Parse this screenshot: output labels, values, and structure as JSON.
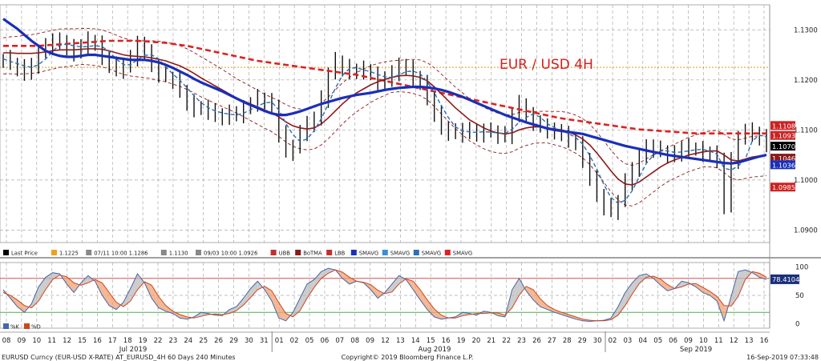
{
  "chart_data": [
    {
      "type": "line",
      "title": "EUR / USD 4H",
      "ylim": [
        1.0875,
        1.135
      ],
      "yticks": [
        "1.1300",
        "1.1200",
        "1.1100",
        "1.1000",
        "1.0900"
      ],
      "reference_line": 1.1225,
      "grid": true,
      "price_labels": [
        {
          "text": "1.1108",
          "value": 1.1108,
          "color": "#cc2222"
        },
        {
          "text": "1.1093",
          "value": 1.1093,
          "color": "#cc2222"
        },
        {
          "text": "1.1070",
          "value": 1.107,
          "color": "#000000"
        },
        {
          "text": "1.1046",
          "value": 1.1046,
          "color": "#8b1a1a"
        },
        {
          "text": "1.1036",
          "value": 1.1036,
          "color": "#1a2fb8"
        },
        {
          "text": "1.0985",
          "value": 1.0985,
          "color": "#cc2222"
        }
      ],
      "legend": [
        {
          "label": "Last Price",
          "color": "#000000"
        },
        {
          "label": "1.1225",
          "color": "#f0a020"
        },
        {
          "label": "07/11 10:00 1.1286",
          "color": "#888888"
        },
        {
          "label": "1.1130",
          "color": "#888888"
        },
        {
          "label": "09/03 10:00 1.0926",
          "color": "#888888"
        },
        {
          "label": "UBB",
          "color": "#c03030"
        },
        {
          "label": "BoTMA",
          "color": "#8b1a1a"
        },
        {
          "label": "LBB",
          "color": "#c03030"
        },
        {
          "label": "SMAVG",
          "color": "#1a2fb8"
        },
        {
          "label": "SMAVG",
          "color": "#3a8fd8"
        },
        {
          "label": "SMAVG",
          "color": "#2a6fb8"
        },
        {
          "label": "SMAVG",
          "color": "#dd2222"
        }
      ],
      "close": [
        1.1242,
        1.1232,
        1.1224,
        1.1214,
        1.123,
        1.1254,
        1.1268,
        1.1278,
        1.1276,
        1.1264,
        1.1254,
        1.127,
        1.1279,
        1.1271,
        1.1246,
        1.123,
        1.122,
        1.1226,
        1.1244,
        1.1272,
        1.1254,
        1.123,
        1.1212,
        1.1206,
        1.12,
        1.1178,
        1.1154,
        1.1142,
        1.1144,
        1.1138,
        1.1128,
        1.1126,
        1.1134,
        1.1131,
        1.1142,
        1.1154,
        1.1164,
        1.1156,
        1.1148,
        1.1092,
        1.1056,
        1.1066,
        1.1094,
        1.1112,
        1.1122,
        1.1162,
        1.1212,
        1.1238,
        1.1224,
        1.1216,
        1.1221,
        1.1218,
        1.121,
        1.1194,
        1.1202,
        1.1214,
        1.1228,
        1.1222,
        1.1206,
        1.1192,
        1.1166,
        1.1132,
        1.1104,
        1.1096,
        1.1092,
        1.11,
        1.1096,
        1.1092,
        1.1098,
        1.1096,
        1.109,
        1.1088,
        1.1132,
        1.1152,
        1.1128,
        1.1116,
        1.1106,
        1.11,
        1.1096,
        1.1092,
        1.1082,
        1.107,
        1.1042,
        1.1002,
        1.0972,
        1.0946,
        1.0938,
        1.0958,
        1.0996,
        1.1022,
        1.1048,
        1.1066,
        1.1062,
        1.1056,
        1.105,
        1.1052,
        1.1066,
        1.1064,
        1.106,
        1.1054,
        1.1052,
        1.104,
        1.0948,
        1.104,
        1.1082,
        1.1098,
        1.1094,
        1.1084,
        1.107
      ],
      "sma_blue": [
        1.1322,
        1.1312,
        1.1302,
        1.129,
        1.1278,
        1.1268,
        1.1258,
        1.1252,
        1.1248,
        1.1246,
        1.1246,
        1.1248,
        1.125,
        1.125,
        1.1248,
        1.1246,
        1.1244,
        1.1242,
        1.124,
        1.124,
        1.124,
        1.1238,
        1.1235,
        1.123,
        1.1224,
        1.1217,
        1.121,
        1.1202,
        1.1195,
        1.1189,
        1.1183,
        1.1177,
        1.117,
        1.1163,
        1.1156,
        1.115,
        1.1144,
        1.1138,
        1.1133,
        1.113,
        1.113,
        1.1133,
        1.1137,
        1.1142,
        1.1147,
        1.1152,
        1.1156,
        1.116,
        1.1164,
        1.1167,
        1.117,
        1.1172,
        1.1174,
        1.1177,
        1.118,
        1.1182,
        1.1184,
        1.1185,
        1.1186,
        1.1186,
        1.1185,
        1.1183,
        1.118,
        1.1176,
        1.1171,
        1.1166,
        1.116,
        1.1154,
        1.1148,
        1.1142,
        1.1136,
        1.113,
        1.1125,
        1.112,
        1.1115,
        1.1111,
        1.1107,
        1.1103,
        1.11,
        1.1098,
        1.1096,
        1.1094,
        1.1092,
        1.1088,
        1.1084,
        1.108,
        1.1076,
        1.1072,
        1.1068,
        1.1065,
        1.1062,
        1.1059,
        1.1056,
        1.1053,
        1.105,
        1.1048,
        1.1046,
        1.1044,
        1.1042,
        1.104,
        1.1038,
        1.1036,
        1.1034,
        1.1033,
        1.1035,
        1.1039,
        1.1043,
        1.1047,
        1.105
      ],
      "botma": [
        1.1254,
        1.1254,
        1.1253,
        1.1253,
        1.1253,
        1.1254,
        1.1256,
        1.1258,
        1.126,
        1.126,
        1.126,
        1.1261,
        1.1262,
        1.1262,
        1.1261,
        1.1258,
        1.1254,
        1.125,
        1.1248,
        1.1247,
        1.1246,
        1.1244,
        1.1241,
        1.1238,
        1.1233,
        1.1228,
        1.1221,
        1.1213,
        1.1204,
        1.1196,
        1.1188,
        1.118,
        1.1172,
        1.1164,
        1.1158,
        1.1152,
        1.1146,
        1.114,
        1.1134,
        1.1126,
        1.1116,
        1.1108,
        1.1104,
        1.1102,
        1.1104,
        1.1112,
        1.1124,
        1.1138,
        1.1152,
        1.1164,
        1.1174,
        1.1182,
        1.119,
        1.1196,
        1.1201,
        1.1205,
        1.1208,
        1.1209,
        1.1208,
        1.1205,
        1.1198,
        1.1186,
        1.1172,
        1.1158,
        1.1144,
        1.1132,
        1.112,
        1.1112,
        1.1104,
        1.1098,
        1.1094,
        1.1092,
        1.1094,
        1.11,
        1.1104,
        1.1106,
        1.1106,
        1.1104,
        1.1102,
        1.11,
        1.1096,
        1.109,
        1.1082,
        1.107,
        1.1054,
        1.1036,
        1.1018,
        1.1002,
        1.0992,
        1.099,
        1.0996,
        1.1006,
        1.1016,
        1.1026,
        1.1034,
        1.104,
        1.1045,
        1.105,
        1.1053,
        1.1056,
        1.1058,
        1.1058,
        1.105,
        1.104,
        1.1038,
        1.1042,
        1.1046,
        1.1048,
        1.105
      ],
      "sma_long": [
        1.1268,
        1.1268,
        1.1268,
        1.1268,
        1.1268,
        1.1268,
        1.1269,
        1.127,
        1.1271,
        1.1272,
        1.1273,
        1.1274,
        1.1275,
        1.1276,
        1.1277,
        1.1278,
        1.1278,
        1.1278,
        1.1278,
        1.1278,
        1.1277,
        1.1276,
        1.1275,
        1.1274,
        1.1272,
        1.127,
        1.1268,
        1.1265,
        1.1262,
        1.1259,
        1.1256,
        1.1253,
        1.125,
        1.1247,
        1.1244,
        1.1241,
        1.1238,
        1.1236,
        1.1234,
        1.1232,
        1.123,
        1.1228,
        1.1226,
        1.1224,
        1.1222,
        1.122,
        1.1218,
        1.1216,
        1.1214,
        1.1212,
        1.121,
        1.1207,
        1.1204,
        1.1201,
        1.1198,
        1.1195,
        1.1192,
        1.1189,
        1.1186,
        1.1183,
        1.118,
        1.1177,
        1.1174,
        1.1171,
        1.1168,
        1.1165,
        1.1162,
        1.1159,
        1.1156,
        1.1153,
        1.115,
        1.1147,
        1.1144,
        1.1141,
        1.1138,
        1.1135,
        1.1132,
        1.1129,
        1.1126,
        1.1123,
        1.1121,
        1.1119,
        1.1117,
        1.1115,
        1.1113,
        1.1111,
        1.1109,
        1.1107,
        1.1105,
        1.1103,
        1.1101,
        1.11,
        1.1099,
        1.1098,
        1.1097,
        1.1096,
        1.1095,
        1.1094,
        1.1093,
        1.1093,
        1.1093,
        1.1093,
        1.1093,
        1.1093,
        1.1093,
        1.1093,
        1.1093,
        1.1093,
        1.1093
      ]
    },
    {
      "type": "line",
      "ylim": [
        -8,
        108
      ],
      "yticks": [
        "100",
        "50",
        "0"
      ],
      "levels": [
        80,
        20
      ],
      "value_label": {
        "text": "78.4104",
        "value": 78.4104
      },
      "legend": [
        {
          "label": "%K",
          "color": "#4466aa"
        },
        {
          "label": "%D",
          "color": "#cc4422"
        }
      ],
      "k": [
        60,
        45,
        30,
        20,
        35,
        65,
        82,
        90,
        88,
        70,
        55,
        72,
        85,
        75,
        50,
        32,
        25,
        38,
        62,
        88,
        72,
        45,
        28,
        22,
        18,
        10,
        8,
        12,
        20,
        18,
        15,
        14,
        25,
        30,
        45,
        62,
        75,
        60,
        40,
        10,
        5,
        20,
        45,
        70,
        78,
        92,
        98,
        95,
        80,
        70,
        75,
        72,
        60,
        45,
        55,
        70,
        85,
        78,
        60,
        42,
        25,
        12,
        8,
        10,
        12,
        20,
        18,
        15,
        22,
        20,
        14,
        12,
        60,
        80,
        58,
        42,
        30,
        25,
        20,
        16,
        12,
        8,
        5,
        4,
        5,
        6,
        10,
        30,
        55,
        72,
        85,
        88,
        80,
        68,
        58,
        62,
        75,
        72,
        65,
        55,
        50,
        40,
        5,
        48,
        92,
        95,
        90,
        82,
        78
      ],
      "d": [
        55,
        50,
        42,
        32,
        28,
        40,
        60,
        78,
        86,
        83,
        72,
        68,
        72,
        78,
        72,
        55,
        38,
        30,
        40,
        60,
        74,
        68,
        48,
        32,
        22,
        16,
        12,
        10,
        13,
        16,
        17,
        16,
        18,
        23,
        33,
        46,
        60,
        66,
        58,
        37,
        18,
        12,
        23,
        45,
        64,
        80,
        89,
        95,
        91,
        82,
        75,
        73,
        69,
        59,
        53,
        56,
        70,
        79,
        75,
        60,
        42,
        26,
        15,
        10,
        10,
        14,
        16,
        18,
        18,
        19,
        19,
        15,
        28,
        50,
        66,
        60,
        44,
        32,
        25,
        20,
        16,
        12,
        8,
        6,
        5,
        5,
        7,
        15,
        32,
        52,
        71,
        82,
        84,
        79,
        69,
        62,
        65,
        70,
        71,
        64,
        57,
        48,
        32,
        31,
        48,
        78,
        92,
        89,
        82
      ]
    }
  ],
  "x_axis": {
    "day_labels": [
      "08",
      "09",
      "10",
      "11",
      "12",
      "15",
      "16",
      "17",
      "18",
      "19",
      "22",
      "23",
      "24",
      "25",
      "26",
      "29",
      "30",
      "31",
      "01",
      "02",
      "05",
      "06",
      "07",
      "08",
      "09",
      "12",
      "13",
      "14",
      "15",
      "16",
      "19",
      "20",
      "21",
      "22",
      "23",
      "26",
      "27",
      "28",
      "29",
      "30",
      "02",
      "03",
      "04",
      "05",
      "06",
      "09",
      "10",
      "11",
      "12",
      "13",
      "16"
    ],
    "month_labels": [
      "Jul 2019",
      "Aug 2019",
      "Sep 2019"
    ]
  },
  "footer": {
    "left": "EURUSD Curncy (EUR-USD X-RATE) AT_EURUSD_4H 60 Days 240 Minutes",
    "center": "Copyright© 2019 Bloomberg Finance L.P.",
    "right": "16-Sep-2019 07:33:48"
  }
}
